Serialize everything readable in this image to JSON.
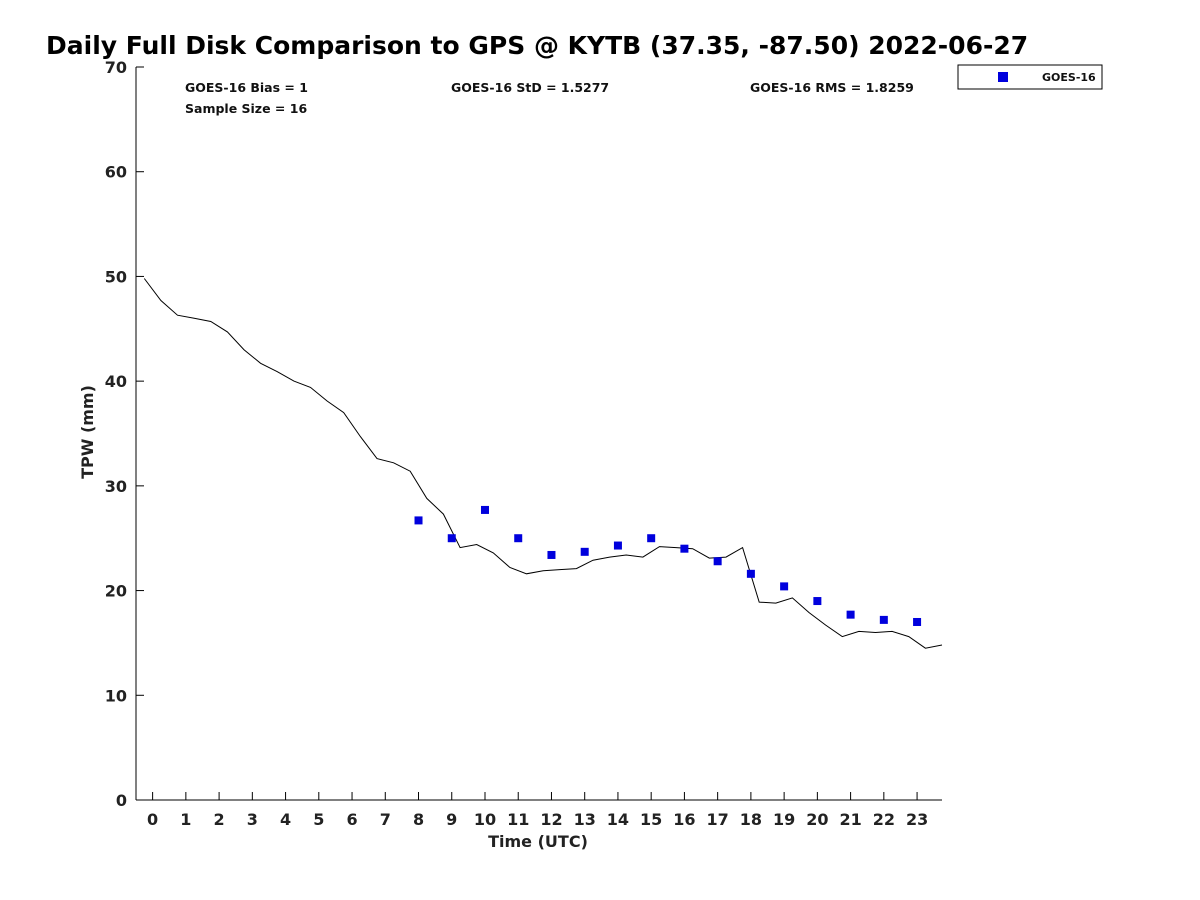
{
  "chart_data": {
    "type": "scatter",
    "title": "Daily Full Disk Comparison to GPS @ KYTB (37.35, -87.50) 2022-06-27",
    "xlabel": "Time (UTC)",
    "ylabel": "TPW (mm)",
    "xlim": [
      -0.5,
      23.75
    ],
    "ylim": [
      0,
      70
    ],
    "xticks": [
      0,
      1,
      2,
      3,
      4,
      5,
      6,
      7,
      8,
      9,
      10,
      11,
      12,
      13,
      14,
      15,
      16,
      17,
      18,
      19,
      20,
      21,
      22,
      23
    ],
    "yticks": [
      0,
      10,
      20,
      30,
      40,
      50,
      60,
      70
    ],
    "grid": false,
    "legend_position": "top-right",
    "stats": {
      "bias": "GOES-16 Bias = 1",
      "sample_size": "Sample Size = 16",
      "std": "GOES-16 StD = 1.5277",
      "rms": "GOES-16 RMS = 1.8259"
    },
    "series": [
      {
        "name": "GOES-16",
        "kind": "scatter",
        "marker": "square",
        "color": "#0000dd",
        "x": [
          8,
          9,
          10,
          11,
          12,
          13,
          14,
          15,
          16,
          17,
          18,
          19,
          20,
          21,
          22,
          23
        ],
        "y": [
          26.7,
          25.0,
          27.7,
          25.0,
          23.4,
          23.7,
          24.3,
          25.0,
          24.0,
          22.8,
          21.6,
          20.4,
          19.0,
          17.7,
          17.2,
          17.0
        ]
      },
      {
        "name": "",
        "kind": "line",
        "color": "#000000",
        "x": [
          -0.25,
          0.25,
          0.75,
          1.25,
          1.75,
          2.25,
          2.75,
          3.25,
          3.75,
          4.25,
          4.75,
          5.25,
          5.75,
          6.25,
          6.75,
          7.25,
          7.75,
          8.25,
          8.75,
          9.25,
          9.75,
          10.25,
          10.75,
          11.25,
          11.75,
          12.25,
          12.75,
          13.25,
          13.75,
          14.25,
          14.75,
          15.25,
          15.75,
          16.25,
          16.75,
          17.25,
          17.75,
          18.25,
          18.75,
          19.25,
          19.75,
          20.25,
          20.75,
          21.25,
          21.75,
          22.25,
          22.75,
          23.25,
          23.75
        ],
        "y": [
          49.8,
          47.7,
          46.3,
          46.0,
          45.7,
          44.7,
          43.0,
          41.7,
          40.9,
          40.0,
          39.4,
          38.1,
          37.0,
          34.7,
          32.6,
          32.2,
          31.4,
          28.8,
          27.3,
          24.1,
          24.4,
          23.6,
          22.2,
          21.6,
          21.9,
          22.0,
          22.1,
          22.9,
          23.2,
          23.4,
          23.2,
          24.2,
          24.1,
          24.0,
          23.1,
          23.2,
          24.1,
          18.9,
          18.8,
          19.3,
          17.9,
          16.7,
          15.6,
          16.1,
          16.0,
          16.1,
          15.6,
          14.5,
          14.8
        ]
      }
    ]
  }
}
